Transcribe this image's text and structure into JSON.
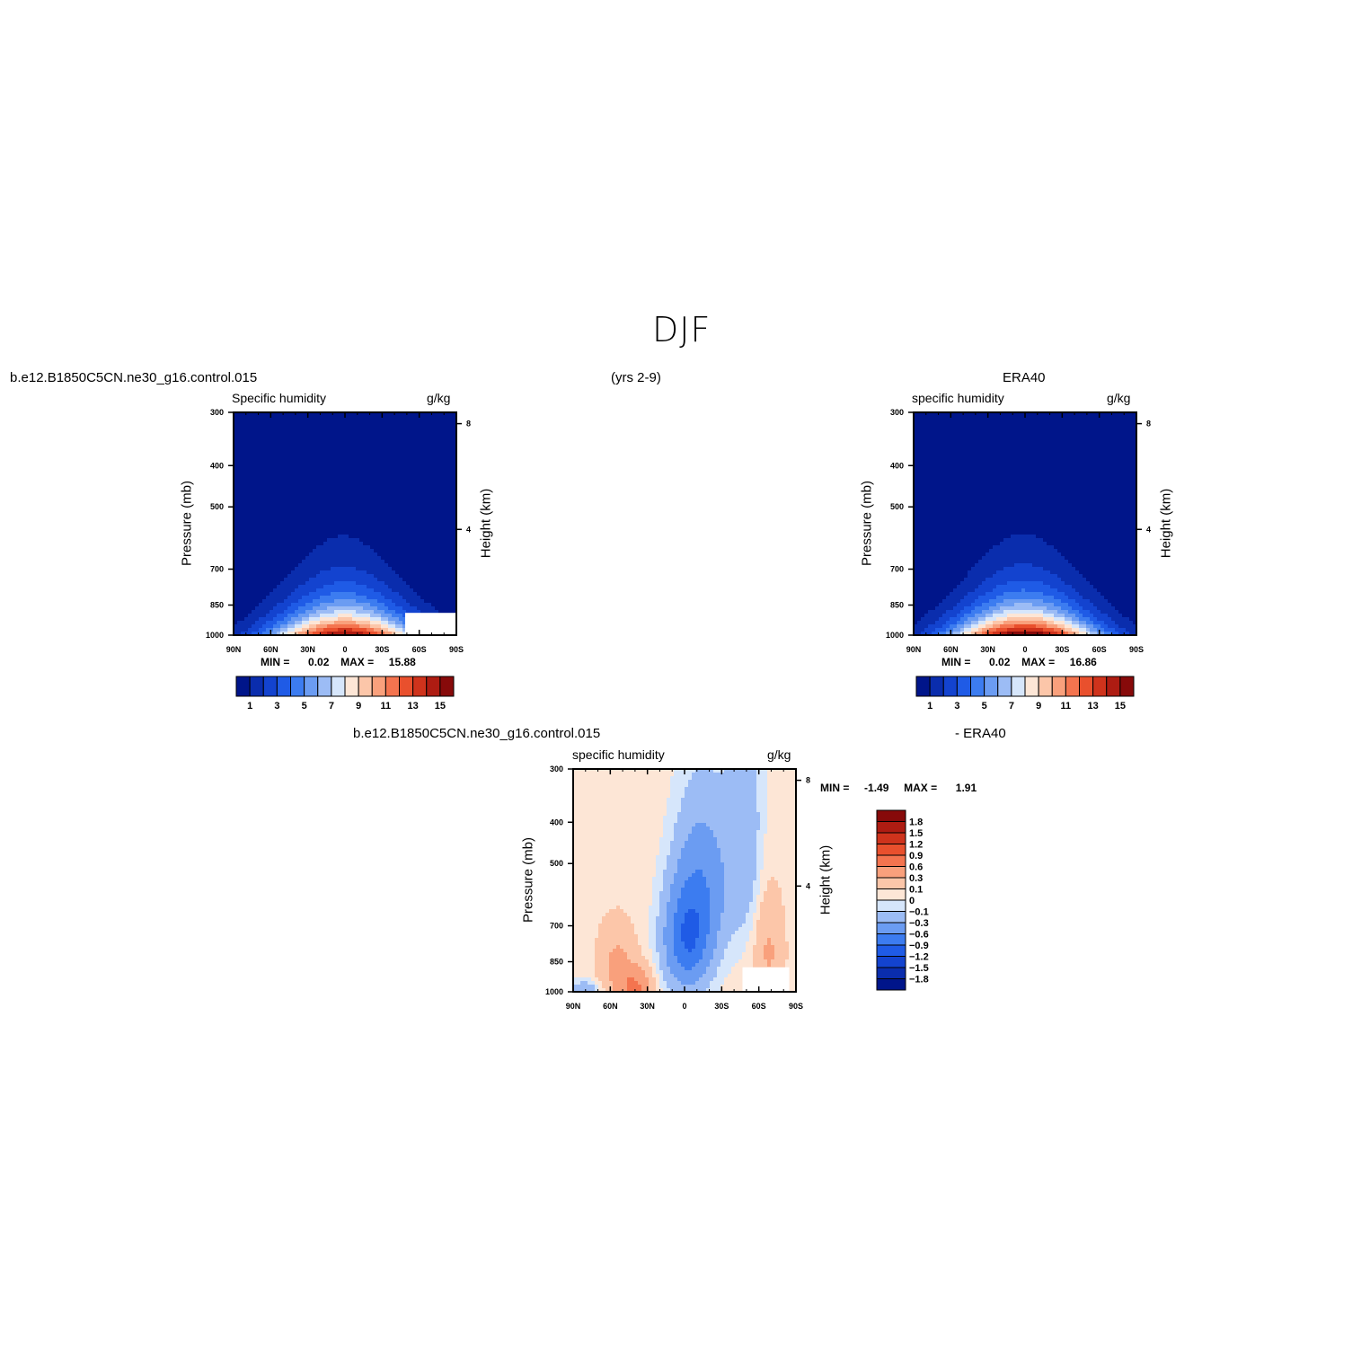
{
  "figure": {
    "title": "DJF",
    "case_name_top": "b.e12.B1850C5CN.ne30_g16.control.015",
    "years": "(yrs 2-9)",
    "obs_name": "ERA40",
    "case_name_diff": "b.e12.B1850C5CN.ne30_g16.control.015",
    "diff_suffix": "- ERA40"
  },
  "chart_data": [
    {
      "id": "model",
      "type": "heatmap",
      "title": "Specific humidity",
      "units": "g/kg",
      "xlabel": "",
      "ylabel": "Pressure (mb)",
      "y2label": "Height (km)",
      "x_ticks": [
        "90N",
        "60N",
        "30N",
        "0",
        "30S",
        "60S",
        "90S"
      ],
      "y_ticks": [
        "300",
        "400",
        "500",
        "700",
        "850",
        "1000"
      ],
      "y2_ticks": [
        "8",
        "4"
      ],
      "stats": {
        "min_label": "MIN =",
        "min": "0.02",
        "max_label": "MAX =",
        "max": "15.88"
      },
      "levels": [
        1,
        2,
        3,
        4,
        5,
        6,
        7,
        8,
        9,
        10,
        11,
        12,
        13,
        14,
        15,
        16
      ],
      "colorbar_labels": [
        "1",
        "3",
        "5",
        "7",
        "9",
        "11",
        "13",
        "15"
      ],
      "colors": [
        "#00158a",
        "#0a2dad",
        "#1343cf",
        "#1f5be6",
        "#3c7cf0",
        "#6b9cf2",
        "#9cbcf5",
        "#d6e6fb",
        "#fde6d6",
        "#fcc6a9",
        "#f9a07c",
        "#f4744f",
        "#e9502d",
        "#cf331c",
        "#ae1c12",
        "#870a0a"
      ],
      "peak": 15.88,
      "ylim": [
        1000,
        300
      ]
    },
    {
      "id": "obs",
      "type": "heatmap",
      "title": "specific humidity",
      "units": "g/kg",
      "xlabel": "",
      "ylabel": "Pressure (mb)",
      "y2label": "Height (km)",
      "x_ticks": [
        "90N",
        "60N",
        "30N",
        "0",
        "30S",
        "60S",
        "90S"
      ],
      "y_ticks": [
        "300",
        "400",
        "500",
        "700",
        "850",
        "1000"
      ],
      "y2_ticks": [
        "8",
        "4"
      ],
      "stats": {
        "min_label": "MIN =",
        "min": "0.02",
        "max_label": "MAX =",
        "max": "16.86"
      },
      "levels": [
        1,
        2,
        3,
        4,
        5,
        6,
        7,
        8,
        9,
        10,
        11,
        12,
        13,
        14,
        15,
        16
      ],
      "colorbar_labels": [
        "1",
        "3",
        "5",
        "7",
        "9",
        "11",
        "13",
        "15"
      ],
      "colors": [
        "#00158a",
        "#0a2dad",
        "#1343cf",
        "#1f5be6",
        "#3c7cf0",
        "#6b9cf2",
        "#9cbcf5",
        "#d6e6fb",
        "#fde6d6",
        "#fcc6a9",
        "#f9a07c",
        "#f4744f",
        "#e9502d",
        "#cf331c",
        "#ae1c12",
        "#870a0a"
      ],
      "peak": 16.86,
      "ylim": [
        1000,
        300
      ]
    },
    {
      "id": "diff",
      "type": "heatmap",
      "title": "specific humidity",
      "units": "g/kg",
      "xlabel": "",
      "ylabel": "Pressure (mb)",
      "y2label": "Height (km)",
      "x_ticks": [
        "90N",
        "60N",
        "30N",
        "0",
        "30S",
        "60S",
        "90S"
      ],
      "y_ticks": [
        "300",
        "400",
        "500",
        "700",
        "850",
        "1000"
      ],
      "y2_ticks": [
        "8",
        "4"
      ],
      "stats": {
        "min_label": "MIN =",
        "min": "-1.49",
        "max_label": "MAX =",
        "max": "1.91"
      },
      "levels": [
        -1.8,
        -1.5,
        -1.2,
        -0.9,
        -0.6,
        -0.3,
        -0.1,
        0,
        0.1,
        0.3,
        0.6,
        0.9,
        1.2,
        1.5,
        1.8
      ],
      "colorbar_labels": [
        "1.8",
        "1.5",
        "1.2",
        "0.9",
        "0.6",
        "0.3",
        "0.1",
        "0",
        "−0.1",
        "−0.3",
        "−0.6",
        "−0.9",
        "−1.2",
        "−1.5",
        "−1.8"
      ],
      "colors": [
        "#00158a",
        "#0a2dad",
        "#1343cf",
        "#1f5be6",
        "#3c7cf0",
        "#6b9cf2",
        "#9cbcf5",
        "#d6e6fb",
        "#fde6d6",
        "#fcc6a9",
        "#f9a07c",
        "#f4744f",
        "#e9502d",
        "#cf331c",
        "#ae1c12",
        "#870a0a"
      ],
      "ylim": [
        1000,
        300
      ]
    }
  ]
}
